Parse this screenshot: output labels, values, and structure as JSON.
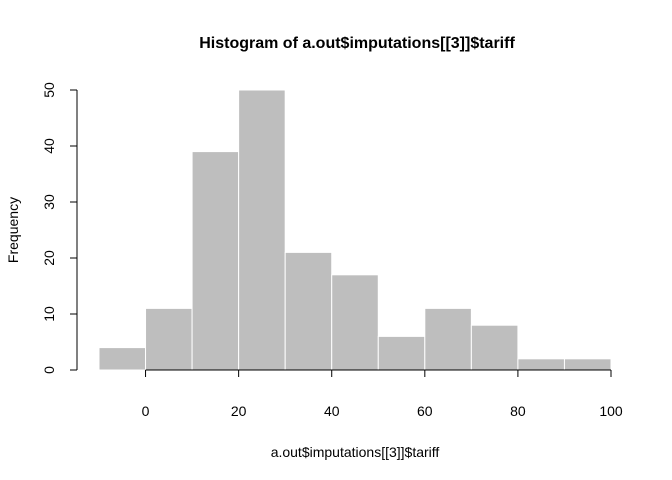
{
  "chart_data": {
    "type": "bar",
    "histogram": true,
    "title": "Histogram of a.out$imputations[[3]]$tariff",
    "xlabel": "a.out$imputations[[3]]$tariff",
    "ylabel": "Frequency",
    "bin_edges": [
      -10,
      0,
      10,
      20,
      30,
      40,
      50,
      60,
      70,
      80,
      90,
      100
    ],
    "values": [
      4,
      11,
      39,
      50,
      21,
      17,
      6,
      11,
      8,
      2,
      2
    ],
    "x_ticks": [
      "0",
      "20",
      "40",
      "60",
      "80",
      "100"
    ],
    "y_ticks": [
      "0",
      "10",
      "20",
      "30",
      "40",
      "50"
    ],
    "xlim": [
      -10,
      100
    ],
    "ylim": [
      0,
      50
    ],
    "bar_color": "#bebebe",
    "grid": false,
    "legend": "none"
  }
}
